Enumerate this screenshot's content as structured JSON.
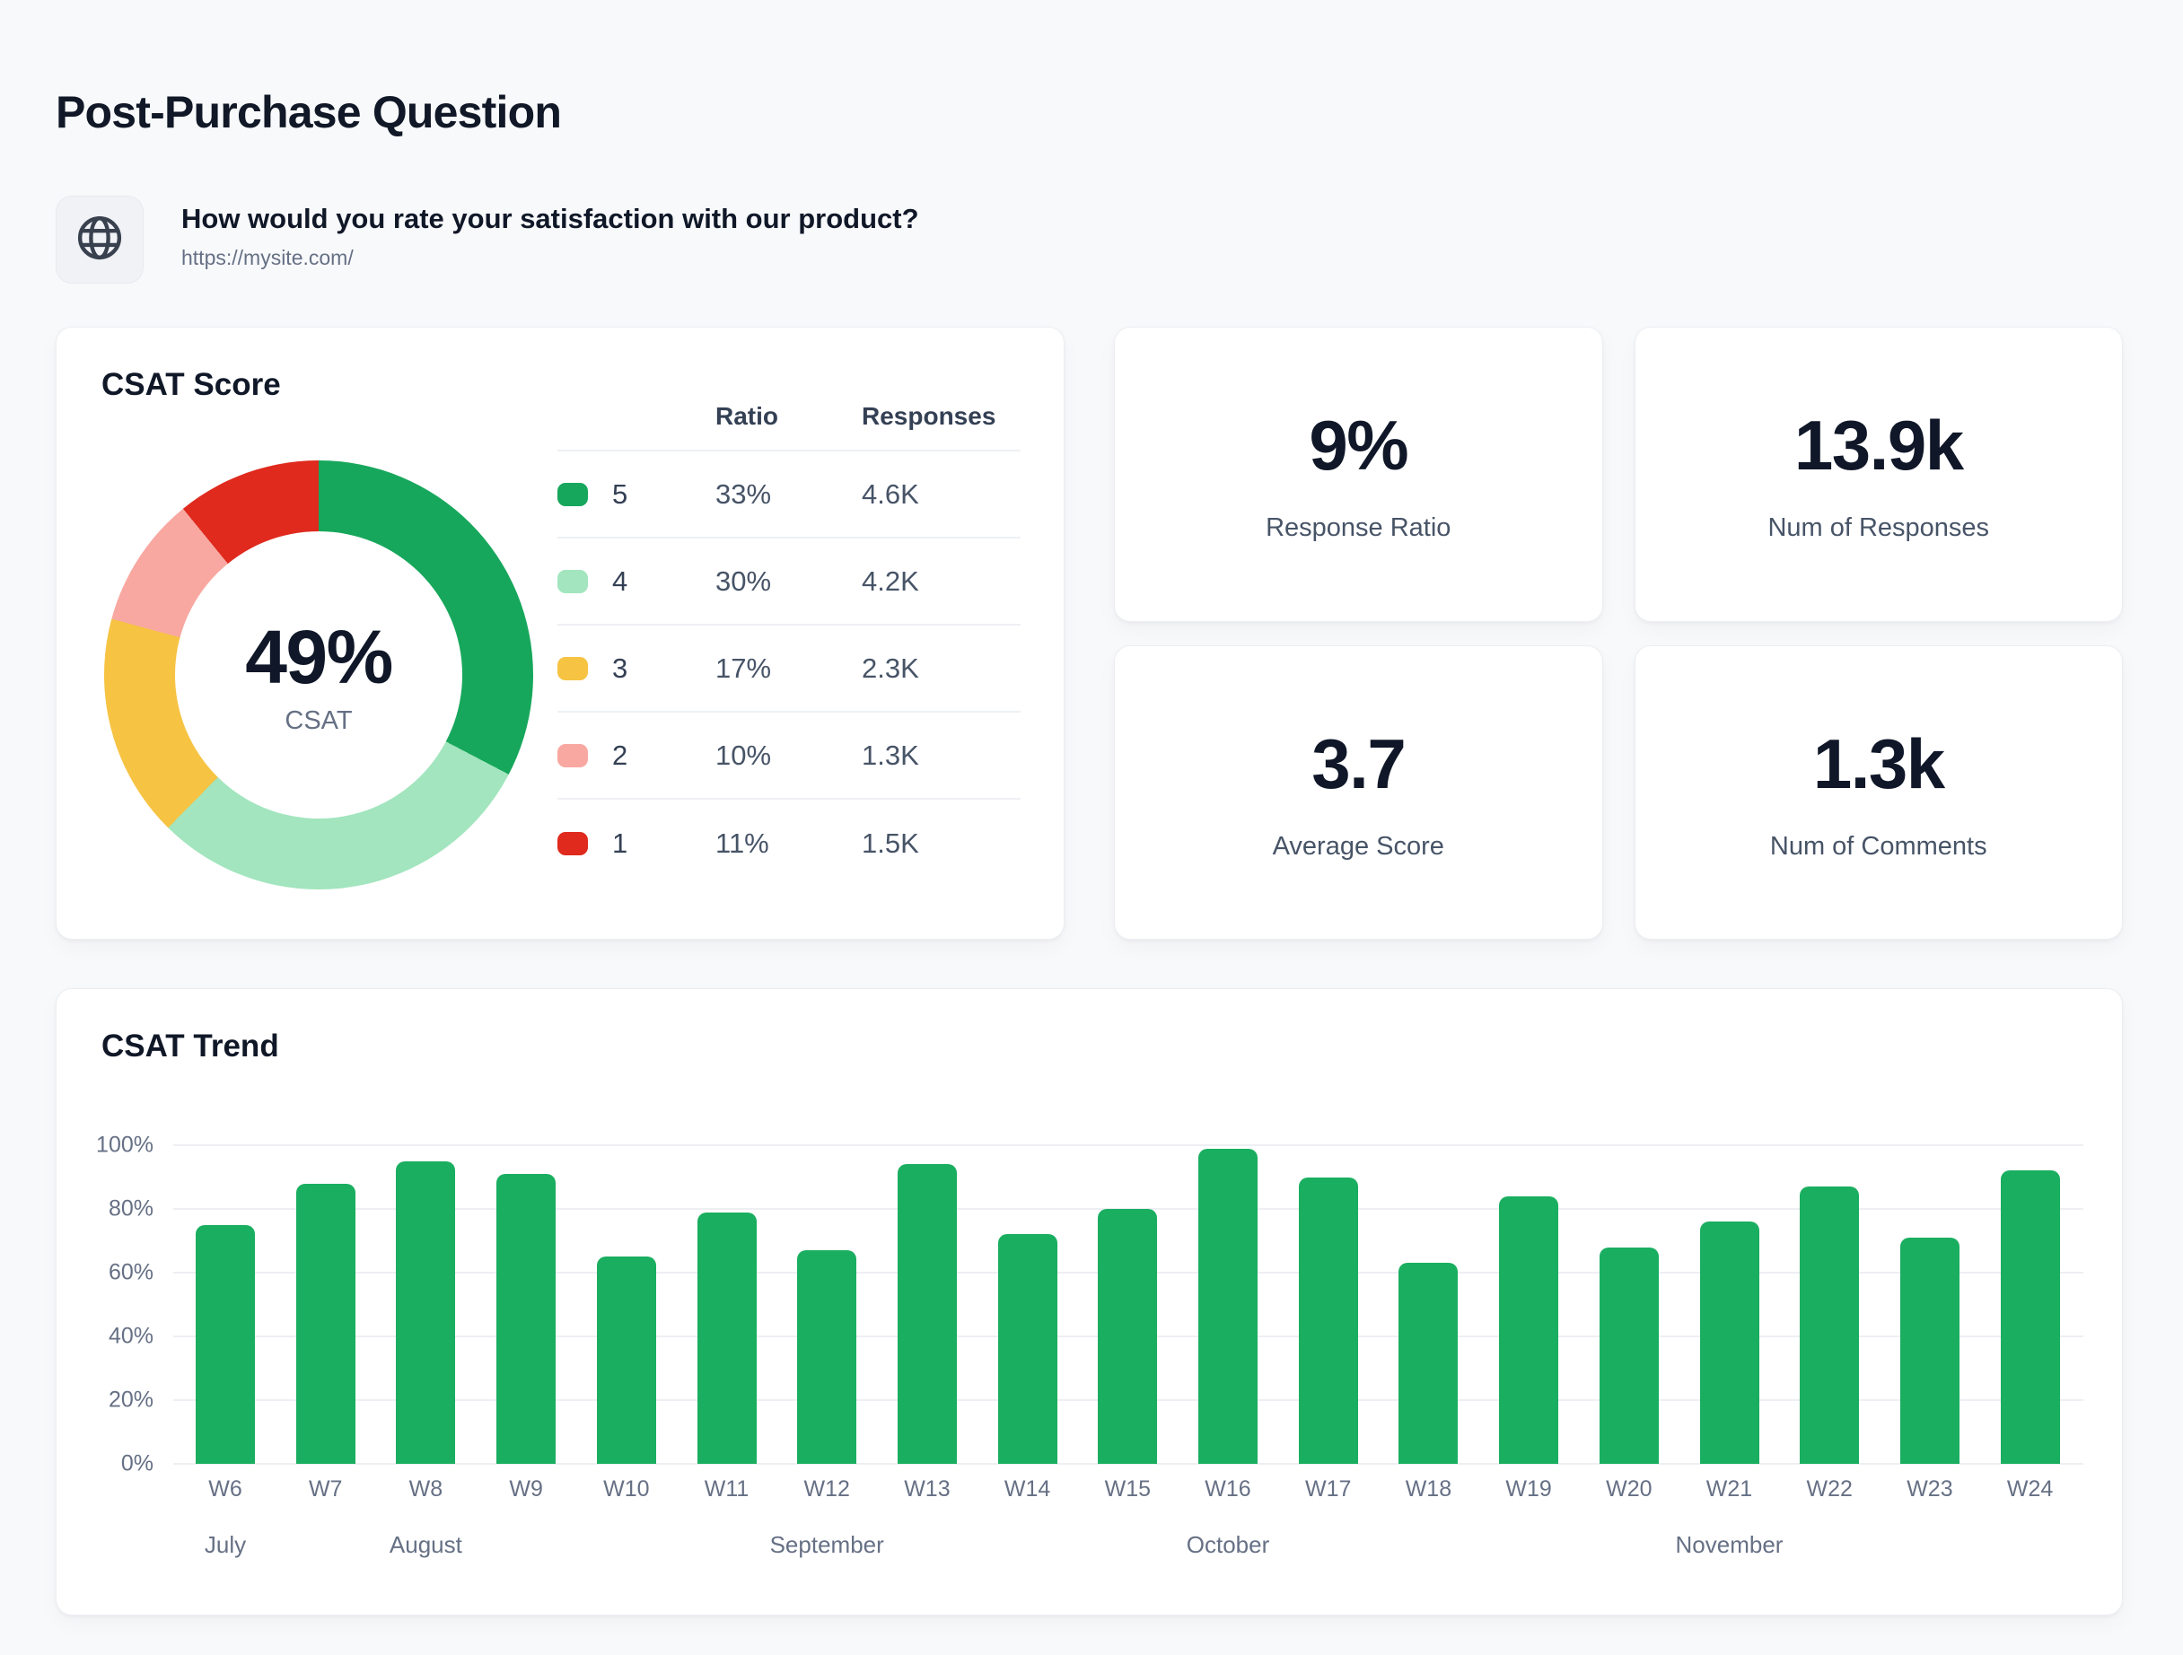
{
  "page_title": "Post-Purchase Question",
  "question": {
    "icon": "globe-icon",
    "text": "How would you rate your satisfaction with our product?",
    "url": "https://mysite.com/"
  },
  "score_card": {
    "title": "CSAT Score",
    "center_value": "49%",
    "center_label": "CSAT",
    "columns": {
      "ratio": "Ratio",
      "responses": "Responses"
    }
  },
  "stat_cards": [
    {
      "value": "9%",
      "label": "Response Ratio"
    },
    {
      "value": "13.9k",
      "label": "Num of Responses"
    },
    {
      "value": "3.7",
      "label": "Average Score"
    },
    {
      "value": "1.3k",
      "label": "Num of Comments"
    }
  ],
  "trend_card": {
    "title": "CSAT Trend"
  },
  "colors": {
    "accent_green": "#1AAE60",
    "text_dark": "#0F1728",
    "text_gray": "#667085",
    "grid": "#EDEFF3",
    "page_bg": "#F8F9FB"
  },
  "chart_data": [
    {
      "type": "pie",
      "subtype": "donut",
      "title": "CSAT Score",
      "center_value": "49%",
      "center_label": "CSAT",
      "direction": "clockwise",
      "start_angle_deg": 0,
      "segments": [
        {
          "label": "5",
          "ratio_pct": 33,
          "responses": "4.6K",
          "color": "#17A75C"
        },
        {
          "label": "4",
          "ratio_pct": 30,
          "responses": "4.2K",
          "color": "#A2E5BE"
        },
        {
          "label": "3",
          "ratio_pct": 17,
          "responses": "2.3K",
          "color": "#F6C343"
        },
        {
          "label": "2",
          "ratio_pct": 10,
          "responses": "1.3K",
          "color": "#F8A8A1"
        },
        {
          "label": "1",
          "ratio_pct": 11,
          "responses": "1.5K",
          "color": "#DF2A1D"
        }
      ]
    },
    {
      "type": "bar",
      "title": "CSAT Trend",
      "categories": [
        "W6",
        "W7",
        "W8",
        "W9",
        "W10",
        "W11",
        "W12",
        "W13",
        "W14",
        "W15",
        "W16",
        "W17",
        "W18",
        "W19",
        "W20",
        "W21",
        "W22",
        "W23",
        "W24"
      ],
      "values": [
        75,
        88,
        95,
        91,
        65,
        79,
        67,
        94,
        72,
        80,
        99,
        90,
        63,
        84,
        68,
        76,
        87,
        71,
        92
      ],
      "bar_color": "#1AAE60",
      "xlabel": "",
      "ylabel": "",
      "ylim": [
        0,
        100
      ],
      "yticks": [
        "0%",
        "20%",
        "40%",
        "60%",
        "80%",
        "100%"
      ],
      "grid": true,
      "legend_position": "none",
      "month_labels": [
        {
          "label": "July",
          "at": "W6"
        },
        {
          "label": "August",
          "at": "W8"
        },
        {
          "label": "September",
          "at": "W12"
        },
        {
          "label": "October",
          "at": "W16"
        },
        {
          "label": "November",
          "at": "W21"
        }
      ]
    }
  ]
}
